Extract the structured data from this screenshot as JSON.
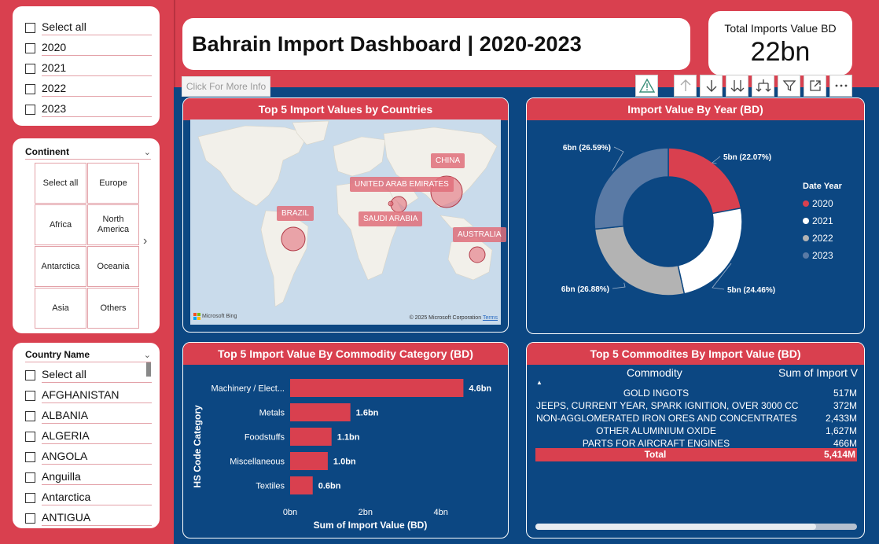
{
  "year_slicer": {
    "items": [
      "Select all",
      "2020",
      "2021",
      "2022",
      "2023"
    ]
  },
  "continent_slicer": {
    "title": "Continent",
    "tiles": [
      "Select all",
      "Europe",
      "Africa",
      "North America",
      "Antarctica",
      "Oceania",
      "Asia",
      "Others"
    ]
  },
  "country_slicer": {
    "title": "Country Name",
    "items": [
      "Select all",
      "AFGHANISTAN",
      "ALBANIA",
      "ALGERIA",
      "ANGOLA",
      "Anguilla",
      "Antarctica",
      "ANTIGUA"
    ]
  },
  "header": {
    "title": "Bahrain Import Dashboard | 2020-2023",
    "more_info": "Click For More Info"
  },
  "kpi": {
    "label": "Total Imports Value BD",
    "value": "22bn"
  },
  "map": {
    "title": "Top 5 Import Values by Countries",
    "labels": [
      "CHINA",
      "UNITED ARAB EMIRATES",
      "SAUDI ARABIA",
      "BRAZIL",
      "AUSTRALIA"
    ],
    "brand": "Microsoft Bing",
    "copyright": "© 2025 Microsoft Corporation",
    "terms": "Terms"
  },
  "donut": {
    "title": "Import Value By Year (BD)",
    "legend_title": "Date Year",
    "labels": [
      "5bn (22.07%)",
      "5bn (24.46%)",
      "6bn (26.88%)",
      "6bn (26.59%)"
    ]
  },
  "bar": {
    "title": "Top 5 Import Value By Commodity Category (BD)"
  },
  "table": {
    "title": "Top 5 Commodites By Import Value (BD)",
    "col_commodity": "Commodity",
    "col_sum": "Sum of Import V",
    "rows": [
      {
        "commodity": "GOLD INGOTS",
        "value": "517M"
      },
      {
        "commodity": "JEEPS, CURRENT YEAR, SPARK IGNITION, OVER 3000 CC",
        "value": "372M"
      },
      {
        "commodity": "NON-AGGLOMERATED IRON ORES AND CONCENTRATES",
        "value": "2,433M"
      },
      {
        "commodity": "OTHER ALUMINIUM OXIDE",
        "value": "1,627M"
      },
      {
        "commodity": "PARTS FOR AIRCRAFT ENGINES",
        "value": "466M"
      }
    ],
    "total_label": "Total",
    "total_value": "5,414M"
  },
  "colors": {
    "brand_red": "#d9404f",
    "navy": "#0c4782",
    "y2020": "#d9404f",
    "y2021": "#ffffff",
    "y2022": "#b3b3b3",
    "y2023": "#5a7aa5"
  },
  "chart_data": [
    {
      "type": "pie",
      "title": "Import Value By Year (BD)",
      "legend_title": "Date Year",
      "legend_position": "right",
      "categories": [
        "2020",
        "2021",
        "2022",
        "2023"
      ],
      "values": [
        22.07,
        24.46,
        26.88,
        26.59
      ],
      "data_labels": [
        "5bn (22.07%)",
        "5bn (24.46%)",
        "6bn (26.88%)",
        "6bn (26.59%)"
      ]
    },
    {
      "type": "bar",
      "orientation": "horizontal",
      "title": "Top 5 Import Value By Commodity Category (BD)",
      "xlabel": "Sum of Import Value (BD)",
      "ylabel": "HS Code Category",
      "categories": [
        "Machinery / Elect...",
        "Metals",
        "Foodstuffs",
        "Miscellaneous",
        "Textiles"
      ],
      "values": [
        4.6,
        1.6,
        1.1,
        1.0,
        0.6
      ],
      "data_labels": [
        "4.6bn",
        "1.6bn",
        "1.1bn",
        "1.0bn",
        "0.6bn"
      ],
      "xticks": [
        "0bn",
        "2bn",
        "4bn"
      ],
      "xlim": [
        0,
        4.8
      ]
    }
  ]
}
